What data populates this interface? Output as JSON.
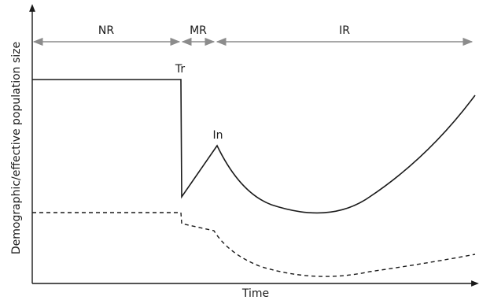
{
  "axes": {
    "y_label": "Demographic/effective population size",
    "x_label": "Time"
  },
  "phases": {
    "nr": "NR",
    "mr": "MR",
    "ir": "IR"
  },
  "events": {
    "transition": "Tr",
    "introduction": "In"
  },
  "colors": {
    "axis": "#1a1a1a",
    "arrow": "#8c8c8c",
    "curve": "#1a1a1a"
  }
}
